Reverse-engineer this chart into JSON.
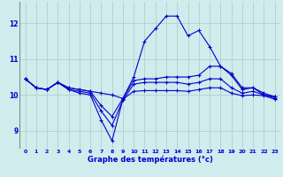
{
  "xlabel": "Graphe des températures (°c)",
  "background_color": "#d0ecec",
  "grid_color": "#b0c8c8",
  "line_color": "#0000cc",
  "hours": [
    0,
    1,
    2,
    3,
    4,
    5,
    6,
    7,
    8,
    9,
    10,
    11,
    12,
    13,
    14,
    15,
    16,
    17,
    18,
    19,
    20,
    21,
    22,
    23
  ],
  "series": [
    [
      10.45,
      10.2,
      10.15,
      10.35,
      10.2,
      10.15,
      10.1,
      10.05,
      10.0,
      9.9,
      10.4,
      10.45,
      10.45,
      10.5,
      10.5,
      10.5,
      10.55,
      10.8,
      10.8,
      10.55,
      10.15,
      10.2,
      10.05,
      9.95
    ],
    [
      10.45,
      10.2,
      10.15,
      10.35,
      10.2,
      10.15,
      10.1,
      9.7,
      9.4,
      9.9,
      10.5,
      11.5,
      11.85,
      12.2,
      12.2,
      11.65,
      11.8,
      11.35,
      10.8,
      10.6,
      10.2,
      10.2,
      10.0,
      9.95
    ],
    [
      10.45,
      10.2,
      10.15,
      10.35,
      10.15,
      10.1,
      10.05,
      9.55,
      9.15,
      9.85,
      10.3,
      10.35,
      10.35,
      10.35,
      10.35,
      10.3,
      10.35,
      10.45,
      10.45,
      10.2,
      10.05,
      10.1,
      10.0,
      9.92
    ],
    [
      10.45,
      10.2,
      10.15,
      10.35,
      10.15,
      10.05,
      10.0,
      9.3,
      8.72,
      9.88,
      10.1,
      10.12,
      10.12,
      10.12,
      10.12,
      10.1,
      10.15,
      10.2,
      10.2,
      10.05,
      9.98,
      10.0,
      9.98,
      9.88
    ]
  ],
  "ylim": [
    8.5,
    12.6
  ],
  "yticks": [
    9,
    10,
    11,
    12
  ],
  "xticks": [
    0,
    1,
    2,
    3,
    4,
    5,
    6,
    7,
    8,
    9,
    10,
    11,
    12,
    13,
    14,
    15,
    16,
    17,
    18,
    19,
    20,
    21,
    22,
    23
  ]
}
